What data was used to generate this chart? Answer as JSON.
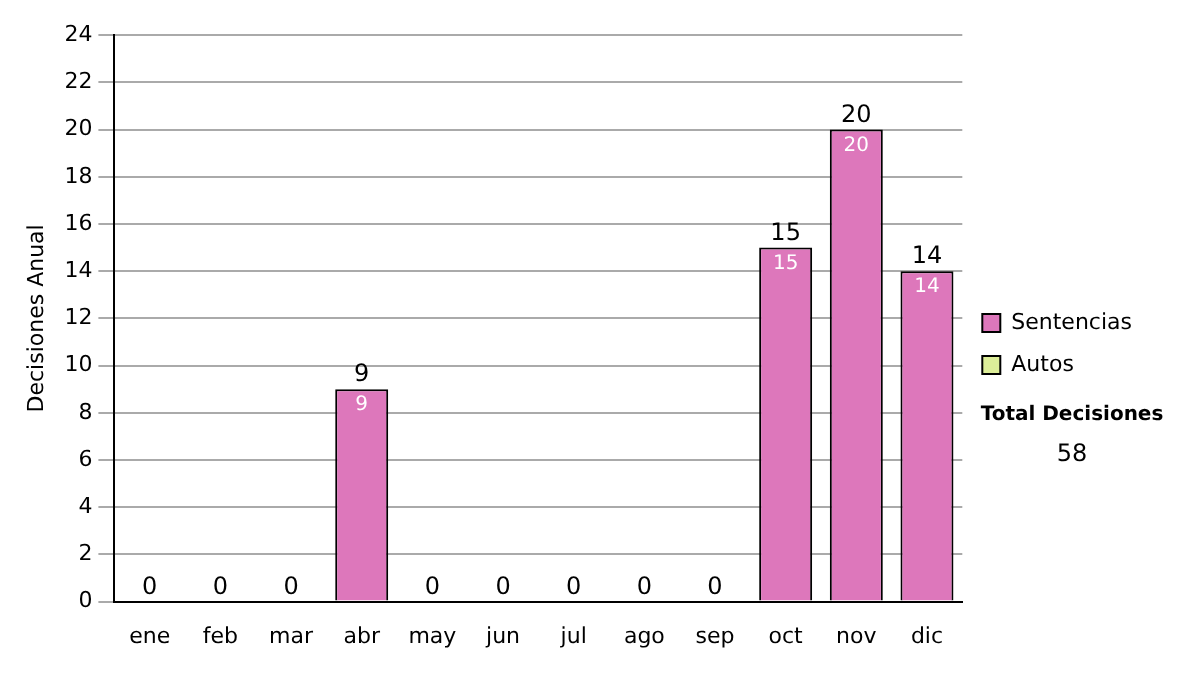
{
  "chart_data": {
    "type": "bar",
    "stacked": true,
    "ylabel": "Decisiones Anual",
    "categories": [
      "ene",
      "feb",
      "mar",
      "abr",
      "may",
      "jun",
      "jul",
      "ago",
      "sep",
      "oct",
      "nov",
      "dic"
    ],
    "series": [
      {
        "name": "Sentencias",
        "color": "#dd77bb",
        "values": [
          0,
          0,
          0,
          9,
          0,
          0,
          0,
          0,
          0,
          15,
          20,
          14
        ],
        "value_labels": [
          null,
          null,
          null,
          "9",
          null,
          null,
          null,
          null,
          null,
          "15",
          "20",
          "14"
        ]
      },
      {
        "name": "Autos",
        "color": "#ddee99",
        "values": [
          0,
          0,
          0,
          0,
          0,
          0,
          0,
          0,
          0,
          0,
          0,
          0
        ]
      }
    ],
    "totals": [
      "0",
      "0",
      "0",
      "9",
      "0",
      "0",
      "0",
      "0",
      "0",
      "15",
      "20",
      "14"
    ],
    "ylim": [
      0,
      24
    ],
    "yticks": [
      0,
      2,
      4,
      6,
      8,
      10,
      12,
      14,
      16,
      18,
      20,
      22,
      24
    ],
    "grid": "y",
    "legend": "right",
    "annotations": [
      "Total Decisiones",
      "58"
    ]
  }
}
